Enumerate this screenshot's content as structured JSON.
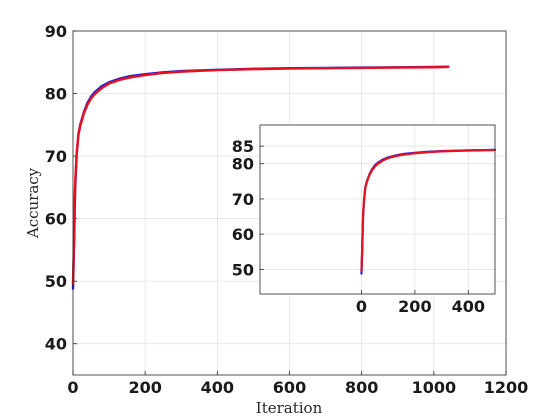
{
  "chart_data": [
    {
      "type": "line",
      "title": "",
      "xlabel": "Iteration",
      "ylabel": "Accuracy",
      "xlim": [
        0,
        1200
      ],
      "ylim": [
        35,
        90
      ],
      "xticks": [
        "0",
        "200",
        "400",
        "600",
        "800",
        "1000",
        "1200"
      ],
      "yticks": [
        "40",
        "50",
        "60",
        "70",
        "80",
        "90"
      ],
      "grid": true,
      "series": [
        {
          "color": "#1f1fd6",
          "x": [
            0,
            3,
            6,
            10,
            15,
            20,
            30,
            40,
            50,
            60,
            80,
            100,
            130,
            160,
            200,
            250,
            300,
            400,
            500,
            600,
            700,
            800,
            900,
            1000,
            1040
          ],
          "y": [
            48.8,
            56,
            65,
            70,
            73.5,
            75,
            77,
            78.5,
            79.5,
            80.2,
            81.2,
            81.8,
            82.4,
            82.8,
            83.1,
            83.4,
            83.6,
            83.8,
            83.95,
            84.05,
            84.1,
            84.15,
            84.2,
            84.25,
            84.3
          ]
        },
        {
          "color": "#e8101e",
          "x": [
            0,
            3,
            6,
            10,
            15,
            20,
            30,
            40,
            50,
            60,
            80,
            100,
            130,
            160,
            200,
            250,
            300,
            400,
            500,
            600,
            700,
            800,
            900,
            1000,
            1040
          ],
          "y": [
            49.6,
            57,
            65.5,
            70.2,
            73.4,
            74.8,
            76.8,
            78.2,
            79.2,
            79.9,
            80.9,
            81.6,
            82.2,
            82.6,
            82.95,
            83.3,
            83.5,
            83.75,
            83.9,
            84.0,
            84.05,
            84.1,
            84.15,
            84.2,
            84.25
          ]
        }
      ]
    },
    {
      "type": "line",
      "title": "",
      "xlabel": "",
      "ylabel": "",
      "xlim": [
        -380,
        500
      ],
      "ylim": [
        43,
        91
      ],
      "xticks": [
        "0",
        "200",
        "400"
      ],
      "yticks": [
        "50",
        "60",
        "70",
        "80",
        "85"
      ],
      "grid": true,
      "series": [
        {
          "color": "#1f1fd6",
          "x": [
            0,
            3,
            6,
            10,
            15,
            20,
            30,
            40,
            50,
            60,
            80,
            100,
            130,
            160,
            200,
            250,
            300,
            400,
            500
          ],
          "y": [
            48.8,
            56,
            65,
            70,
            73.5,
            75,
            77,
            78.5,
            79.5,
            80.2,
            81.2,
            81.8,
            82.4,
            82.8,
            83.1,
            83.4,
            83.6,
            83.8,
            83.95
          ]
        },
        {
          "color": "#e8101e",
          "x": [
            0,
            3,
            6,
            10,
            15,
            20,
            30,
            40,
            50,
            60,
            80,
            100,
            130,
            160,
            200,
            250,
            300,
            400,
            500
          ],
          "y": [
            49.6,
            57,
            65.5,
            70.2,
            73.4,
            74.8,
            76.8,
            78.2,
            79.2,
            79.9,
            80.9,
            81.6,
            82.2,
            82.6,
            82.95,
            83.3,
            83.5,
            83.75,
            83.9
          ]
        }
      ]
    }
  ]
}
